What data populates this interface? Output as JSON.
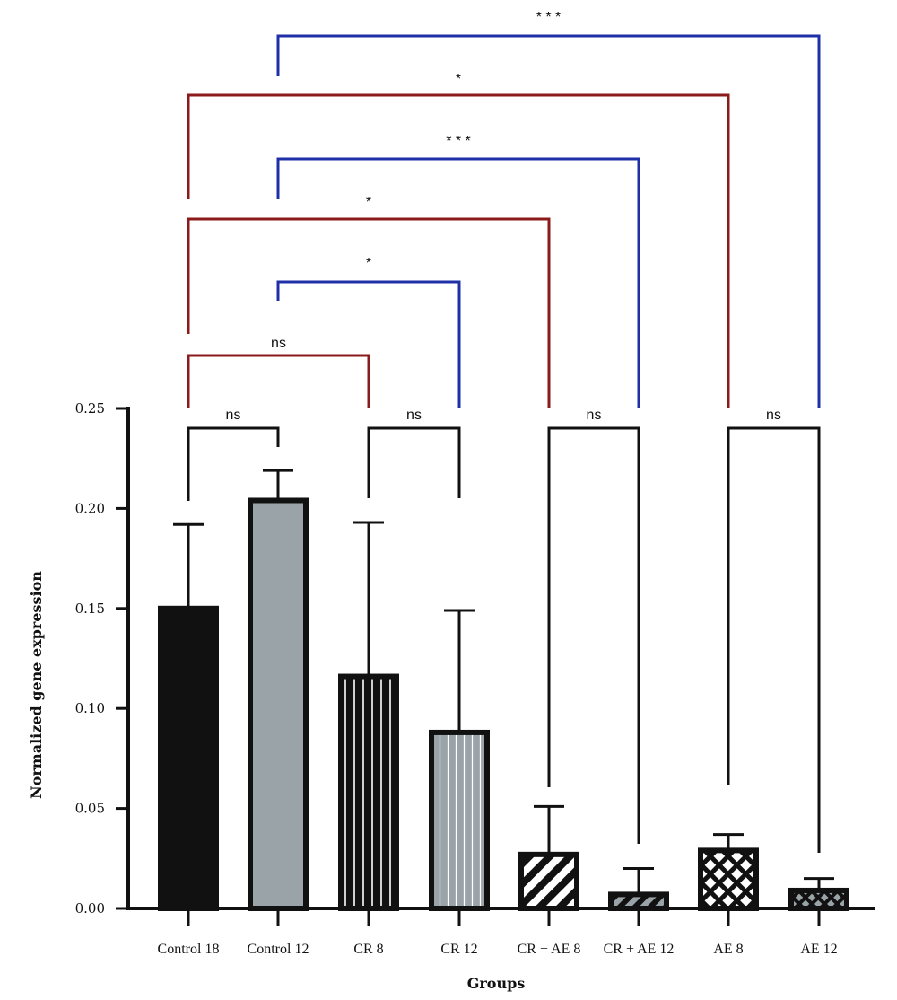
{
  "chart_data": {
    "type": "bar",
    "xlabel": "Groups",
    "ylabel": "Normalized gene expression",
    "ylim": [
      0,
      0.25
    ],
    "yticks": [
      "0.00",
      "0.05",
      "0.10",
      "0.15",
      "0.20",
      "0.25"
    ],
    "categories": [
      "Control 18",
      "Control 12",
      "CR 8",
      "CR 12",
      "CR + AE 8",
      "CR + AE 12",
      "AE 8",
      "AE 12"
    ],
    "values": [
      0.15,
      0.204,
      0.116,
      0.088,
      0.027,
      0.007,
      0.029,
      0.009
    ],
    "errors": [
      0.042,
      0.015,
      0.077,
      0.061,
      0.024,
      0.013,
      0.008,
      0.006
    ],
    "patterns": [
      "solid-black",
      "solid-gray",
      "vertical-black",
      "vertical-gray",
      "diagonal-black",
      "diagonal-gray",
      "crosshatch-black",
      "crosshatch-gray"
    ],
    "colors": {
      "dark": "#111111",
      "gray": "#9aa3a8",
      "red_bracket": "#8b1a1a",
      "blue_bracket": "#1f2fa8",
      "black_bracket": "#111111"
    },
    "comparisons": [
      {
        "from": 0,
        "to": 1,
        "label": "ns",
        "color": "black"
      },
      {
        "from": 2,
        "to": 3,
        "label": "ns",
        "color": "black"
      },
      {
        "from": 4,
        "to": 5,
        "label": "ns",
        "color": "black"
      },
      {
        "from": 6,
        "to": 7,
        "label": "ns",
        "color": "black"
      },
      {
        "from": 0,
        "to": 2,
        "label": "ns",
        "color": "red"
      },
      {
        "from": 1,
        "to": 3,
        "label": "*",
        "color": "blue"
      },
      {
        "from": 0,
        "to": 4,
        "label": "*",
        "color": "red"
      },
      {
        "from": 1,
        "to": 5,
        "label": "* * *",
        "color": "blue"
      },
      {
        "from": 0,
        "to": 6,
        "label": "*",
        "color": "red"
      },
      {
        "from": 1,
        "to": 7,
        "label": "* * *",
        "color": "blue"
      }
    ]
  }
}
